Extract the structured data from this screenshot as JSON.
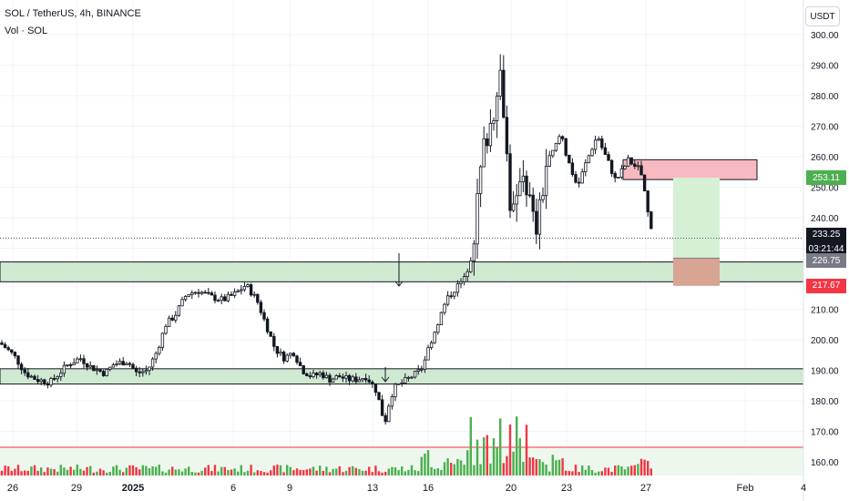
{
  "header": {
    "title": "SOL / TetherUS, 4h, BINANCE",
    "volume_label": "Vol · SOL",
    "currency_button": "USDT"
  },
  "price_labels": {
    "target": {
      "text": "253.11",
      "color": "#4caf50"
    },
    "current": {
      "text": "233.25",
      "color": "#131722"
    },
    "countdown": {
      "text": "03:21:44",
      "color": "#131722"
    },
    "entry": {
      "text": "226.75",
      "color": "#787b86"
    },
    "stop": {
      "text": "217.67",
      "color": "#f23645"
    }
  },
  "colors": {
    "up": "#4caf50",
    "down": "#f23645",
    "zone_fill": "#c8e6c9",
    "resistance_fill": "#f7b9c0",
    "target_fill": "#d6f0d6",
    "stop_fill": "#d8a494"
  },
  "chart_data": {
    "type": "candlestick",
    "title": "SOL / TetherUS, 4h, BINANCE",
    "interval": "4h",
    "y_axis": {
      "ticks": [
        160,
        170,
        180,
        190,
        200,
        210,
        220,
        230,
        240,
        250,
        260,
        270,
        280,
        290,
        300
      ],
      "tick_labels": [
        "160.00",
        "170.00",
        "180.00",
        "190.00",
        "200.00",
        "210.00",
        "",
        "",
        "240.00",
        "250.00",
        "260.00",
        "270.00",
        "280.00",
        "290.00",
        "300.00"
      ],
      "range": [
        157,
        302
      ]
    },
    "x_axis": {
      "tick_labels": [
        "26",
        "29",
        "2025",
        "6",
        "9",
        "13",
        "16",
        "20",
        "23",
        "27",
        "Feb",
        "4"
      ]
    },
    "current_price": 233.25,
    "zones": [
      {
        "kind": "demand",
        "low": 219.0,
        "high": 225.5
      },
      {
        "kind": "demand",
        "low": 185.5,
        "high": 190.5
      },
      {
        "kind": "supply",
        "low": 252.5,
        "high": 259.0
      }
    ],
    "position": {
      "entry": 226.75,
      "target": 253.11,
      "stop": 217.67
    },
    "price_path": [
      [
        0,
        199
      ],
      [
        15,
        195
      ],
      [
        28,
        189
      ],
      [
        40,
        187
      ],
      [
        55,
        186
      ],
      [
        65,
        189
      ],
      [
        75,
        192
      ],
      [
        88,
        194
      ],
      [
        100,
        191
      ],
      [
        115,
        189
      ],
      [
        125,
        192
      ],
      [
        140,
        193
      ],
      [
        150,
        189
      ],
      [
        162,
        190
      ],
      [
        172,
        196
      ],
      [
        182,
        205
      ],
      [
        192,
        208
      ],
      [
        205,
        215
      ],
      [
        218,
        216
      ],
      [
        232,
        214
      ],
      [
        245,
        213
      ],
      [
        258,
        215
      ],
      [
        270,
        218
      ],
      [
        282,
        213
      ],
      [
        292,
        205
      ],
      [
        302,
        197
      ],
      [
        312,
        194
      ],
      [
        322,
        196
      ],
      [
        332,
        190
      ],
      [
        342,
        188
      ],
      [
        352,
        189
      ],
      [
        362,
        187
      ],
      [
        372,
        188
      ],
      [
        382,
        187
      ],
      [
        392,
        187
      ],
      [
        402,
        188
      ],
      [
        412,
        184
      ],
      [
        418,
        178
      ],
      [
        422,
        172
      ],
      [
        426,
        178
      ],
      [
        432,
        184
      ],
      [
        442,
        186
      ],
      [
        452,
        188
      ],
      [
        462,
        190
      ],
      [
        470,
        197
      ],
      [
        480,
        205
      ],
      [
        490,
        213
      ],
      [
        500,
        217
      ],
      [
        510,
        220
      ],
      [
        518,
        228
      ],
      [
        524,
        245
      ],
      [
        530,
        262
      ],
      [
        536,
        268
      ],
      [
        542,
        275
      ],
      [
        548,
        290
      ],
      [
        552,
        280
      ],
      [
        556,
        262
      ],
      [
        560,
        245
      ],
      [
        566,
        240
      ],
      [
        572,
        258
      ],
      [
        580,
        248
      ],
      [
        588,
        235
      ],
      [
        594,
        245
      ],
      [
        600,
        258
      ],
      [
        608,
        262
      ],
      [
        616,
        268
      ],
      [
        622,
        260
      ],
      [
        628,
        255
      ],
      [
        634,
        250
      ],
      [
        642,
        257
      ],
      [
        650,
        263
      ],
      [
        656,
        267
      ],
      [
        662,
        262
      ],
      [
        668,
        258
      ],
      [
        676,
        252
      ],
      [
        684,
        256
      ],
      [
        690,
        259
      ],
      [
        696,
        257
      ],
      [
        702,
        256
      ],
      [
        706,
        252
      ],
      [
        710,
        243
      ],
      [
        716,
        236
      ],
      [
        720,
        233.25
      ]
    ]
  }
}
